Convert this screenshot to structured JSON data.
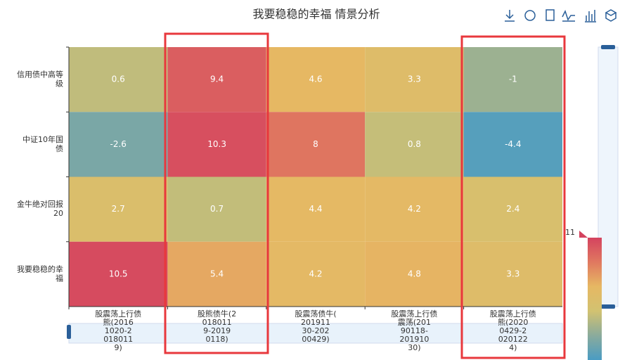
{
  "chart_data": {
    "type": "heatmap",
    "title": "我要稳稳的幸福 情景分析",
    "x_categories": [
      "股震荡上行债熊(20161020-20180119)",
      "股熊债牛(20180119-20190118)",
      "股震荡债牛(20191130-20200429)",
      "股震荡上行债震荡(20190118-20191030)",
      "股震荡上行债熊(20200429-20201224)"
    ],
    "y_categories": [
      "信用债中高等级",
      "中证10年国债",
      "金牛绝对回报20",
      "我要稳稳的幸福"
    ],
    "values": [
      [
        0.6,
        9.4,
        4.6,
        3.3,
        -1
      ],
      [
        -2.6,
        10.3,
        8,
        0.8,
        -4.4
      ],
      [
        2.7,
        0.7,
        4.4,
        4.2,
        2.4
      ],
      [
        10.5,
        5.4,
        4.2,
        4.8,
        3.3
      ]
    ],
    "visual_map": {
      "min": -5,
      "max": 11,
      "colors": [
        "#4a9cc3",
        "#8aab9c",
        "#d2c271",
        "#e6b863",
        "#e07860",
        "#d4435f"
      ]
    }
  }
}
